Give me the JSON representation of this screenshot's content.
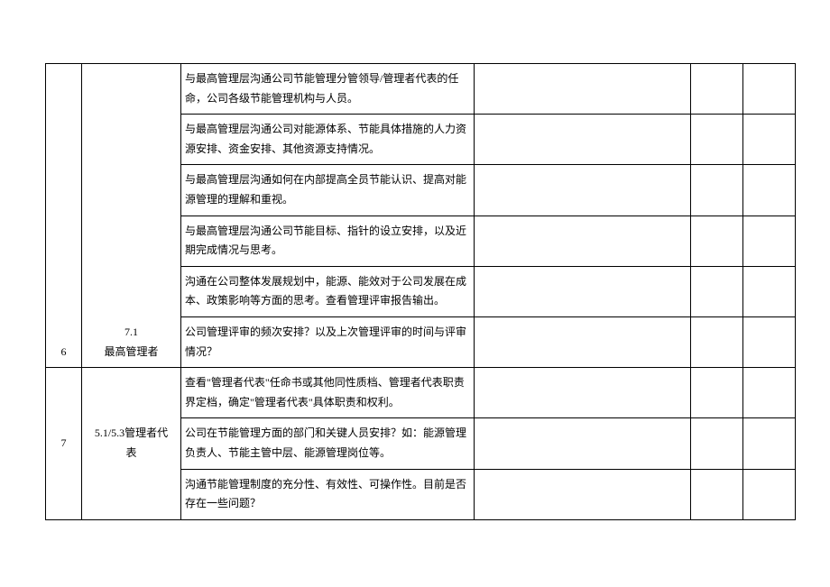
{
  "table": {
    "rows": [
      {
        "num": "6",
        "section_line1": "7.1",
        "section_line2": "最高管理者",
        "rowspan": 6,
        "vertical_align": "bottom",
        "items": [
          "与最高管理层沟通公司节能管理分管领导/管理者代表的任命，公司各级节能管理机构与人员。",
          "与最高管理层沟通公司对能源体系、节能具体措施的人力资源安排、资金安排、其他资源支持情况。",
          "与最高管理层沟通如何在内部提高全员节能认识、提高对能源管理的理解和重视。",
          "与最高管理层沟通公司节能目标、指针的设立安排，以及近期完成情况与思考。",
          "沟通在公司整体发展规划中，能源、能效对于公司发展在成本、政策影响等方面的思考。查看管理评审报告输出。",
          "公司管理评审的频次安排？以及上次管理评审的时间与评审情况？"
        ]
      },
      {
        "num": "7",
        "section_line1": "5.1/5.3管理者代",
        "section_line2": "表",
        "rowspan": 3,
        "vertical_align": "middle",
        "items": [
          "查看\"管理者代表\"任命书或其他同性质档、管理者代表职责界定档，确定\"管理者代表\"具体职责和权利。",
          "公司在节能管理方面的部门和关键人员安排？如：能源管理负责人、节能主管中层、能源管理岗位等。",
          "沟通节能管理制度的充分性、有效性、可操作性。目前是否存在一些问题？"
        ]
      }
    ]
  }
}
